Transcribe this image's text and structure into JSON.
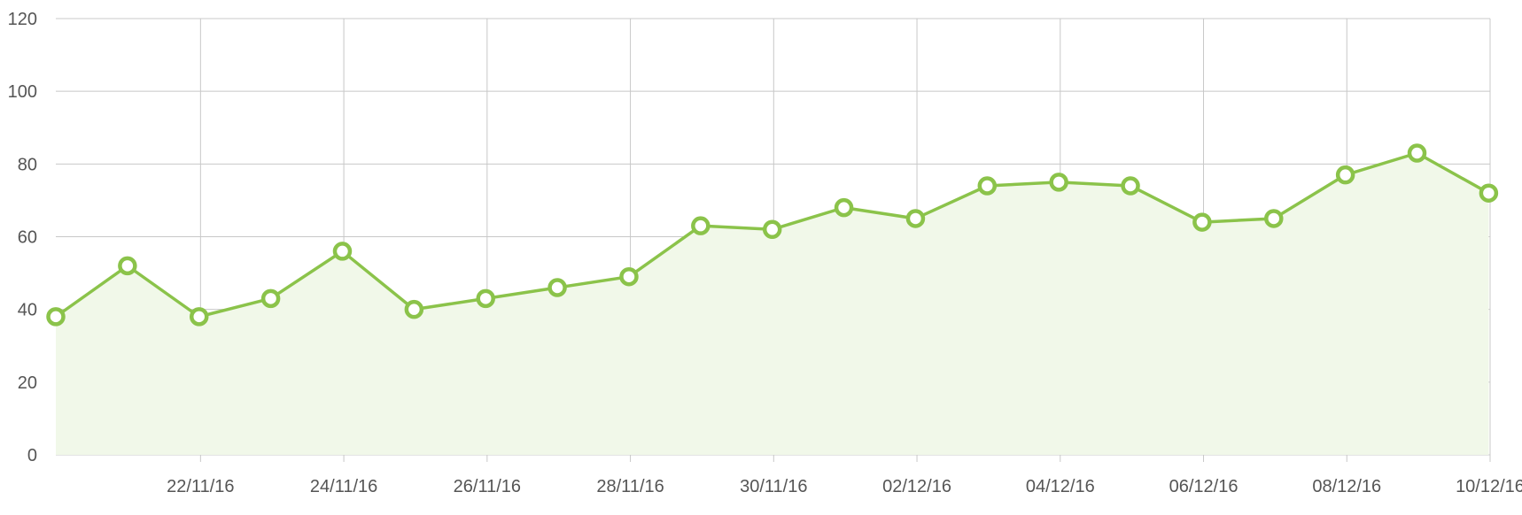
{
  "chart_data": {
    "type": "area",
    "x_type": "date",
    "x": [
      "2016-11-20",
      "2016-11-21",
      "2016-11-22",
      "2016-11-23",
      "2016-11-24",
      "2016-11-25",
      "2016-11-26",
      "2016-11-27",
      "2016-11-28",
      "2016-11-29",
      "2016-11-30",
      "2016-12-01",
      "2016-12-02",
      "2016-12-03",
      "2016-12-04",
      "2016-12-05",
      "2016-12-06",
      "2016-12-07",
      "2016-12-08",
      "2016-12-09",
      "2016-12-10"
    ],
    "series": [
      {
        "values": [
          38,
          52,
          38,
          43,
          56,
          40,
          43,
          46,
          49,
          63,
          62,
          68,
          65,
          74,
          75,
          74,
          64,
          65,
          77,
          83,
          72
        ]
      }
    ],
    "x_ticks": [
      "22/11/16",
      "24/11/16",
      "26/11/16",
      "28/11/16",
      "30/11/16",
      "02/12/16",
      "04/12/16",
      "06/12/16",
      "08/12/16",
      "10/12/16"
    ],
    "y_ticks": [
      0,
      20,
      40,
      60,
      80,
      100,
      120
    ],
    "ylim": [
      0,
      120
    ],
    "title": "",
    "xlabel": "",
    "ylabel": "",
    "grid": true,
    "legend": "none",
    "colors": {
      "line": "#8BC34A",
      "fill": "#F1F8E9",
      "marker_fill": "#ffffff",
      "grid": "#c8c8c8",
      "tick_text": "#555555"
    }
  }
}
